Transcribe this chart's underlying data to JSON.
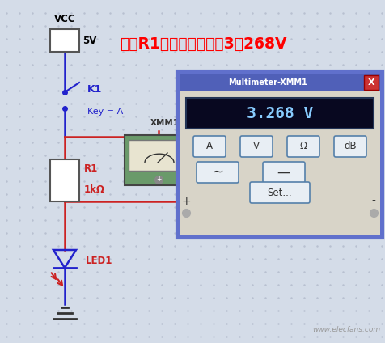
{
  "bg_color": "#d4dce8",
  "dot_color": "#b8c0d0",
  "title_text": "电阵R1两端的电压差为3．268V",
  "title_color": "#ff0000",
  "title_fontsize": 13.5,
  "vcc_label": "VCC",
  "vcc_value": "5V",
  "k1_label": "K1",
  "key_label": "Key = A",
  "xmm1_label": "XMM1",
  "r1_label": "R1",
  "r1_value": "1kΩ",
  "led1_label": "LED1",
  "multimeter_title": "Multimeter-XMM1",
  "multimeter_reading": "3.268 V",
  "wire_color_blue": "#2222cc",
  "wire_color_red": "#cc2222",
  "component_green": "#6a9a6a",
  "watermark": "www.elecfans.com",
  "mm_bg": "#d8d4c8",
  "mm_titlebar": "#5060b8",
  "mm_display_bg": "#080820",
  "mm_display_fg": "#88ccff",
  "mm_btn_bg": "#e8eef4",
  "mm_btn_border": "#5580aa",
  "mm_close_bg": "#cc3333"
}
